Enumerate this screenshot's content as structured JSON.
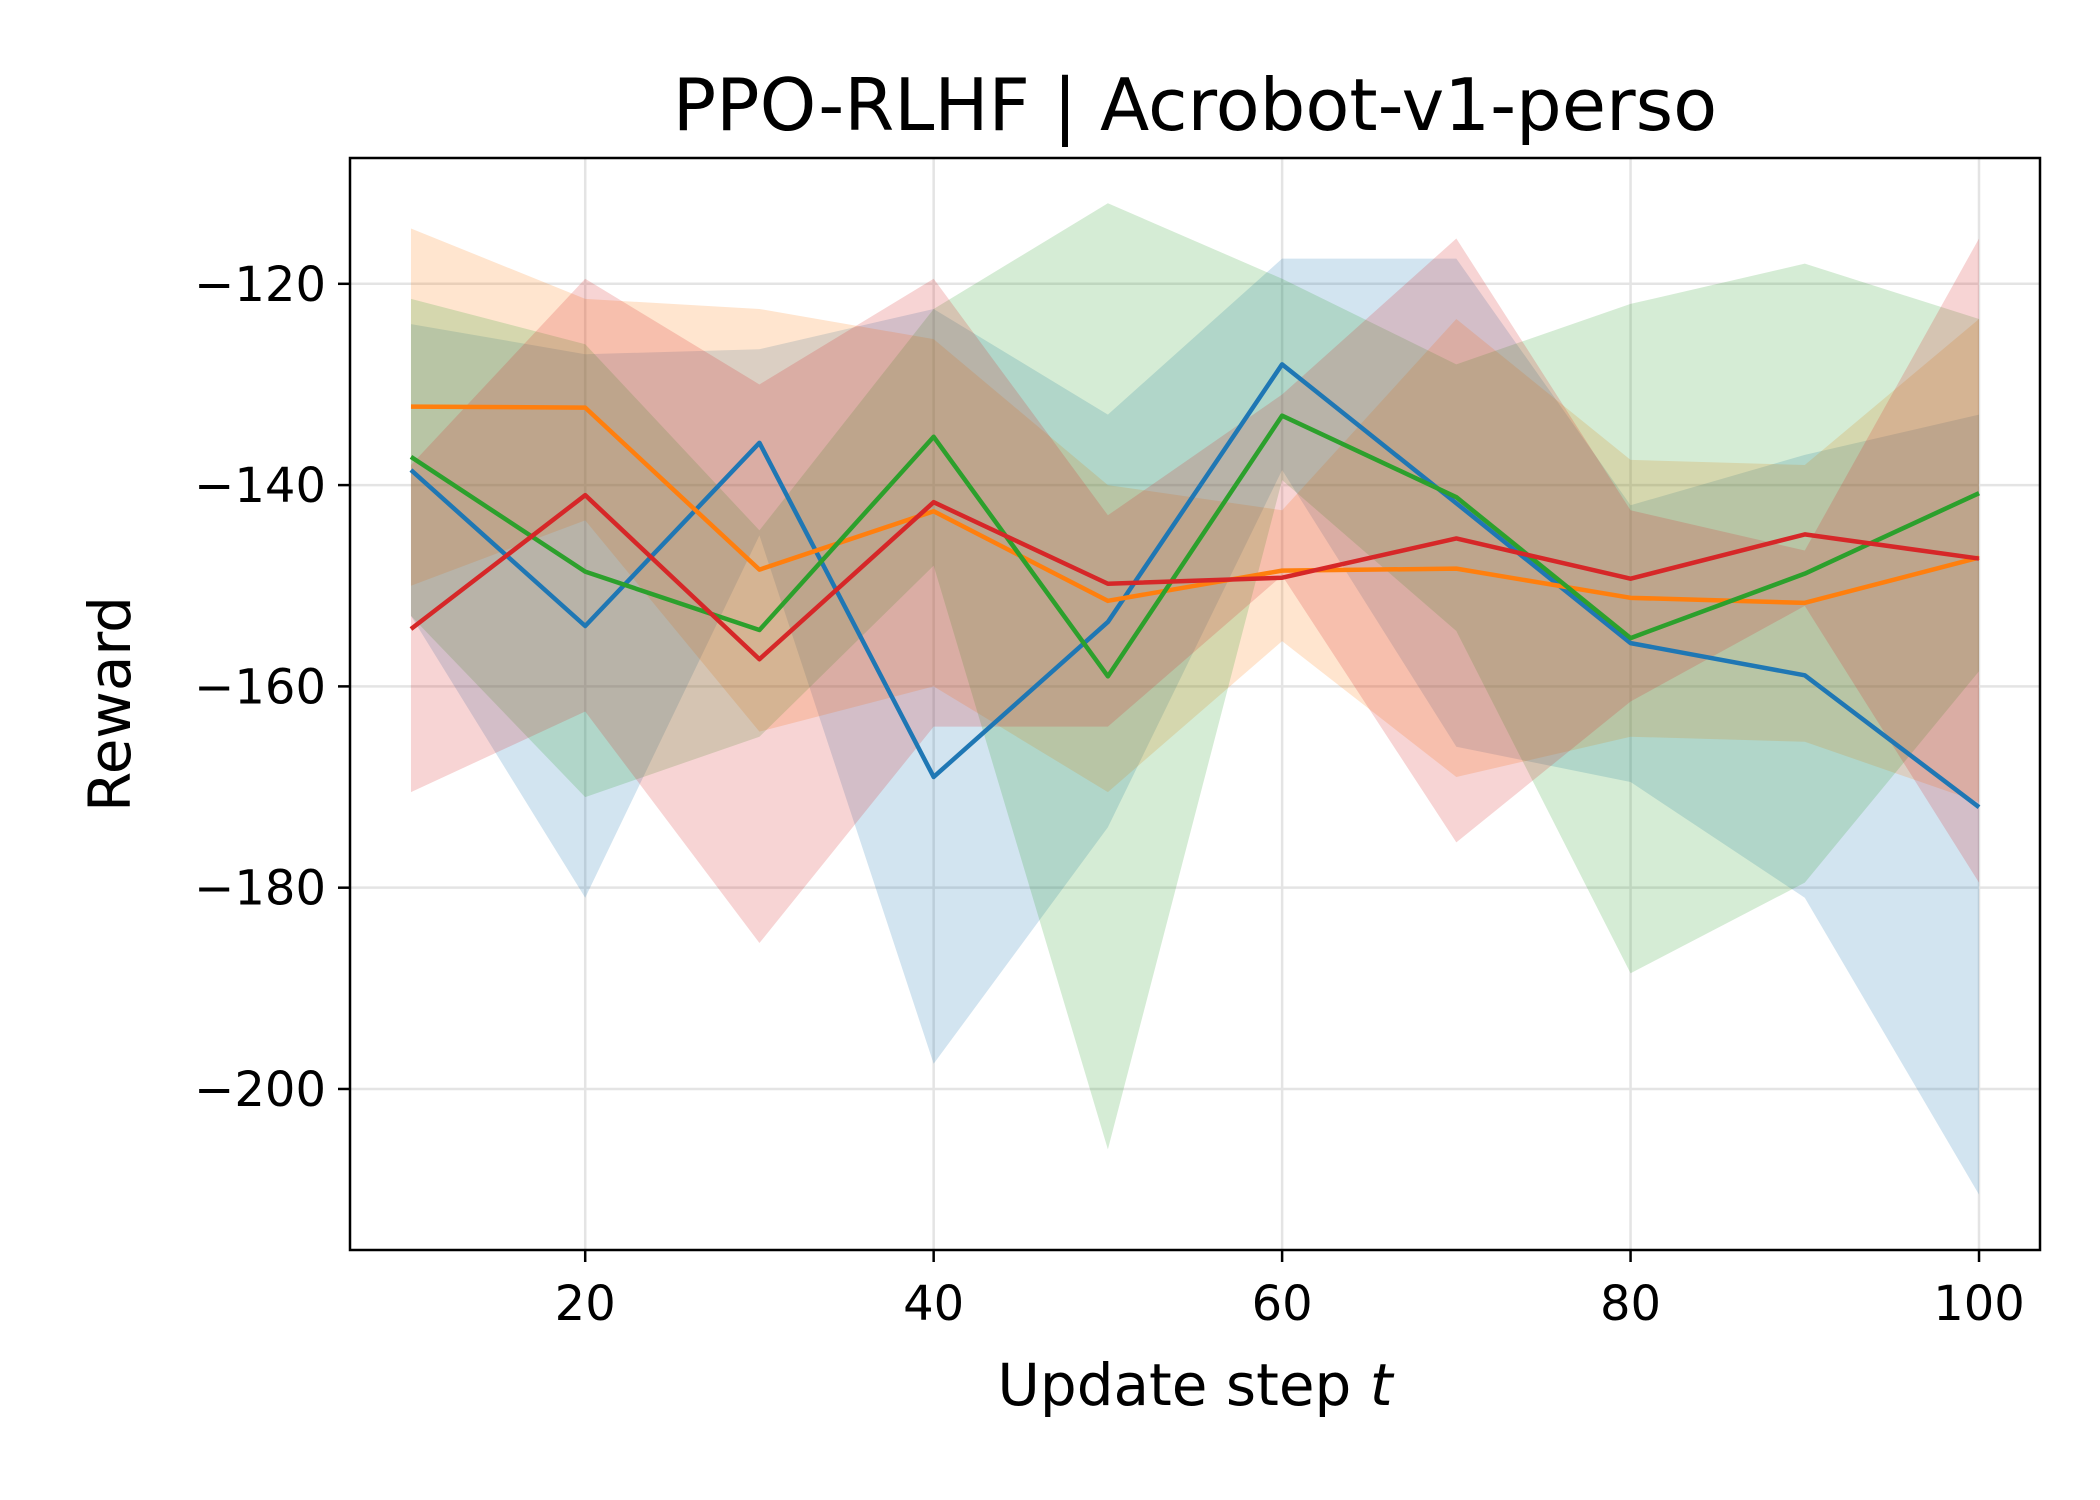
{
  "chart_data": {
    "type": "line",
    "title": "PPO-RLHF | Acrobot-v1-perso",
    "xlabel": "Update step ",
    "xlabel_var": "t",
    "ylabel": "Reward",
    "xlim": [
      6.5,
      103.5
    ],
    "ylim": [
      -216,
      -107.5
    ],
    "xticks": [
      20,
      40,
      60,
      80,
      100
    ],
    "yticks": [
      -120,
      -140,
      -160,
      -180,
      -200
    ],
    "xtick_labels": [
      "20",
      "40",
      "60",
      "80",
      "100"
    ],
    "ytick_labels": [
      "−120",
      "−140",
      "−160",
      "−180",
      "−200"
    ],
    "grid": true,
    "band_opacity": 0.2,
    "x": [
      10,
      20,
      30,
      40,
      50,
      60,
      70,
      80,
      90,
      100
    ],
    "series": [
      {
        "color": "#1f77b4",
        "values": [
          -138.5,
          -154,
          -135.8,
          -169,
          -153.6,
          -128,
          -141.8,
          -155.7,
          -158.9,
          -172
        ],
        "upper": [
          -124,
          -127,
          -126.5,
          -122.5,
          -133,
          -117.5,
          -117.5,
          -142,
          -137,
          -133
        ],
        "lower": [
          -153,
          -181,
          -145,
          -197.5,
          -174,
          -138.5,
          -166,
          -169.5,
          -181,
          -210.5
        ]
      },
      {
        "color": "#ff7f0e",
        "values": [
          -132.2,
          -132.3,
          -148.4,
          -142.6,
          -151.5,
          -148.5,
          -148.3,
          -151.2,
          -151.7,
          -147.2
        ],
        "upper": [
          -114.5,
          -121.5,
          -122.5,
          -125.5,
          -140,
          -142.5,
          -123.5,
          -137.5,
          -138,
          -123.5
        ],
        "lower": [
          -150,
          -143.5,
          -164.5,
          -160,
          -170.5,
          -155.5,
          -169,
          -165,
          -165.5,
          -171.5
        ]
      },
      {
        "color": "#2ca02c",
        "values": [
          -137.2,
          -148.6,
          -154.4,
          -135.2,
          -159,
          -133.1,
          -141.2,
          -155.2,
          -148.8,
          -140.8
        ],
        "upper": [
          -121.5,
          -126,
          -144.5,
          -122.5,
          -112,
          -119.5,
          -128,
          -122,
          -118,
          -123.5
        ],
        "lower": [
          -153,
          -171,
          -165,
          -148,
          -206,
          -139.5,
          -154.5,
          -188.5,
          -179.5,
          -158.5
        ]
      },
      {
        "color": "#d62728",
        "values": [
          -154.3,
          -141,
          -157.3,
          -141.7,
          -149.8,
          -149.2,
          -145.3,
          -149.3,
          -144.9,
          -147.3
        ],
        "upper": [
          -138,
          -119.5,
          -130,
          -119.5,
          -143,
          -131,
          -115.5,
          -142.5,
          -146.5,
          -115.5
        ],
        "lower": [
          -170.5,
          -162.5,
          -185.5,
          -164,
          -164,
          -149,
          -175.5,
          -161.5,
          -152,
          -179.5
        ]
      }
    ]
  }
}
